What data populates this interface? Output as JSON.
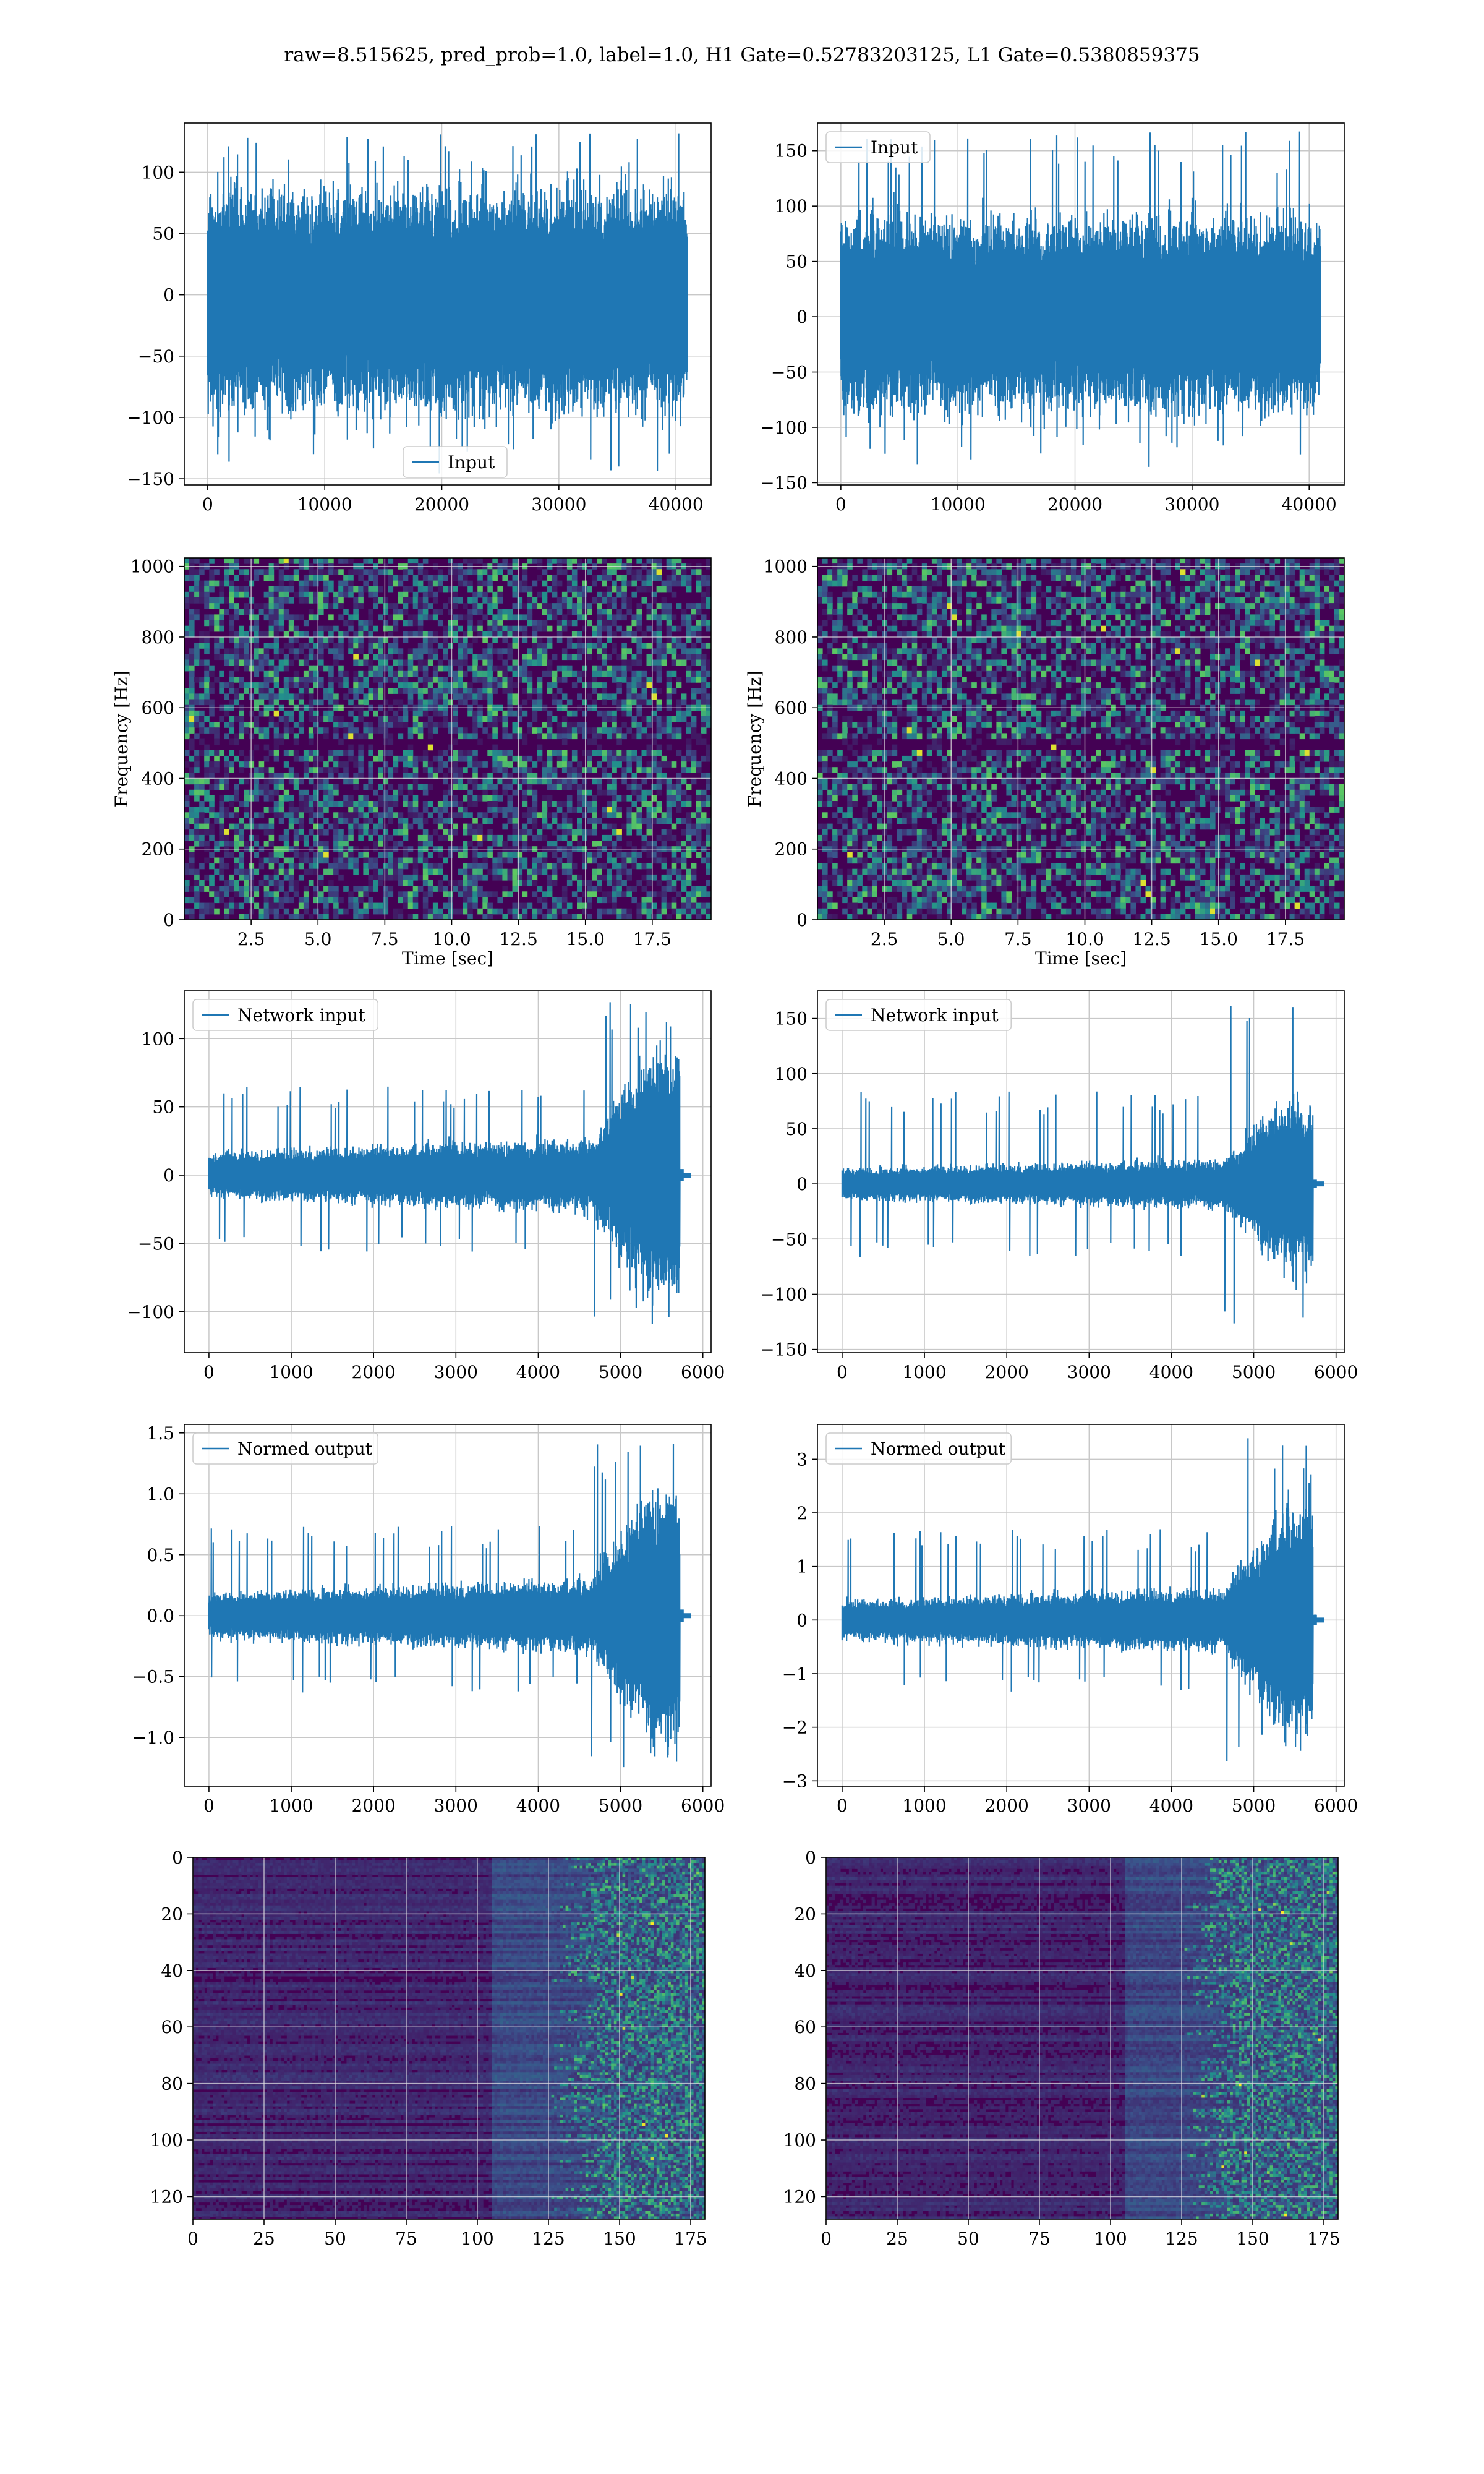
{
  "figure": {
    "title": "raw=8.515625, pred_prob=1.0, label=1.0, H1 Gate=0.52783203125, L1 Gate=0.5380859375"
  },
  "colors": {
    "line": "#1f77b4",
    "grid": "#c8c8c8",
    "viridis_low": "#440154",
    "viridis_mid": "#21918c",
    "viridis_high": "#fde725"
  },
  "chart_data": [
    {
      "id": "h1-input",
      "type": "line",
      "legend": [
        "Input"
      ],
      "legend_loc": "lower center",
      "grid": true,
      "xlim": [
        -2000,
        43000
      ],
      "ylim": [
        -155,
        140
      ],
      "xticks": [
        0,
        10000,
        20000,
        30000,
        40000
      ],
      "yticks": [
        -150,
        -100,
        -50,
        0,
        50,
        100
      ],
      "signal": {
        "n": 40960,
        "band_low": -80,
        "band_high": 70,
        "spike_max": 132,
        "spike_min": -150,
        "burst_start": null
      }
    },
    {
      "id": "l1-input",
      "type": "line",
      "legend": [
        "Input"
      ],
      "legend_loc": "upper left",
      "grid": true,
      "xlim": [
        -2000,
        43000
      ],
      "ylim": [
        -152,
        175
      ],
      "xticks": [
        0,
        10000,
        20000,
        30000,
        40000
      ],
      "yticks": [
        -150,
        -100,
        -50,
        0,
        50,
        100,
        150
      ],
      "signal": {
        "n": 40960,
        "band_low": -70,
        "band_high": 75,
        "spike_max": 168,
        "spike_min": -140,
        "burst_start": null
      }
    },
    {
      "id": "h1-spectrogram",
      "type": "heatmap",
      "grid": true,
      "xlim": [
        0,
        19.7
      ],
      "ylim": [
        0,
        1024
      ],
      "xticks": [
        2.5,
        5.0,
        7.5,
        10.0,
        12.5,
        15.0,
        17.5
      ],
      "yticks": [
        0,
        200,
        400,
        600,
        800,
        1000
      ],
      "xlabel": "Time [sec]",
      "ylabel": "Frequency [Hz]",
      "dark_band_hz": 500
    },
    {
      "id": "l1-spectrogram",
      "type": "heatmap",
      "grid": true,
      "xlim": [
        0,
        19.7
      ],
      "ylim": [
        0,
        1024
      ],
      "xticks": [
        2.5,
        5.0,
        7.5,
        10.0,
        12.5,
        15.0,
        17.5
      ],
      "yticks": [
        0,
        200,
        400,
        600,
        800,
        1000
      ],
      "xlabel": "Time [sec]",
      "ylabel": "Frequency [Hz]",
      "dark_band_hz": 500
    },
    {
      "id": "h1-network-input",
      "type": "line",
      "legend": [
        "Network input"
      ],
      "legend_loc": "upper left",
      "grid": true,
      "xlim": [
        -300,
        6100
      ],
      "ylim": [
        -130,
        135
      ],
      "xticks": [
        0,
        1000,
        2000,
        3000,
        4000,
        5000,
        6000
      ],
      "yticks": [
        -100,
        -50,
        0,
        50,
        100
      ],
      "signal": {
        "n": 5760,
        "band_low": -18,
        "band_high": 18,
        "spike_max": 130,
        "spike_min": -117,
        "burst_start": 4600
      }
    },
    {
      "id": "l1-network-input",
      "type": "line",
      "legend": [
        "Network input"
      ],
      "legend_loc": "upper left",
      "grid": true,
      "xlim": [
        -300,
        6100
      ],
      "ylim": [
        -153,
        175
      ],
      "xticks": [
        0,
        1000,
        2000,
        3000,
        4000,
        5000,
        6000
      ],
      "yticks": [
        -150,
        -100,
        -50,
        0,
        50,
        100,
        150
      ],
      "signal": {
        "n": 5760,
        "band_low": -15,
        "band_high": 15,
        "spike_max": 168,
        "spike_min": -137,
        "burst_start": 4600
      }
    },
    {
      "id": "h1-normed-output",
      "type": "line",
      "legend": [
        "Normed output"
      ],
      "legend_loc": "upper left",
      "grid": true,
      "xlim": [
        -300,
        6100
      ],
      "ylim": [
        -1.4,
        1.57
      ],
      "xticks": [
        0,
        1000,
        2000,
        3000,
        4000,
        5000,
        6000
      ],
      "yticks": [
        -1.0,
        -0.5,
        0.0,
        0.5,
        1.0,
        1.5
      ],
      "signal": {
        "n": 5760,
        "band_low": -0.2,
        "band_high": 0.2,
        "spike_max": 1.47,
        "spike_min": -1.3,
        "burst_start": 4600
      }
    },
    {
      "id": "l1-normed-output",
      "type": "line",
      "legend": [
        "Normed output"
      ],
      "legend_loc": "upper left",
      "grid": true,
      "xlim": [
        -300,
        6100
      ],
      "ylim": [
        -3.1,
        3.65
      ],
      "xticks": [
        0,
        1000,
        2000,
        3000,
        4000,
        5000,
        6000
      ],
      "yticks": [
        -3,
        -2,
        -1,
        0,
        1,
        2,
        3
      ],
      "signal": {
        "n": 5760,
        "band_low": -0.4,
        "band_high": 0.4,
        "spike_max": 3.4,
        "spike_min": -2.75,
        "burst_start": 4600
      }
    },
    {
      "id": "h1-feature-map",
      "type": "heatmap",
      "grid": true,
      "xlim": [
        0,
        180
      ],
      "ylim": [
        128,
        0
      ],
      "xticks": [
        0,
        25,
        50,
        75,
        100,
        125,
        150,
        175
      ],
      "yticks": [
        0,
        20,
        40,
        60,
        80,
        100,
        120
      ],
      "activity_start": 125
    },
    {
      "id": "l1-feature-map",
      "type": "heatmap",
      "grid": true,
      "xlim": [
        0,
        180
      ],
      "ylim": [
        128,
        0
      ],
      "xticks": [
        0,
        25,
        50,
        75,
        100,
        125,
        150,
        175
      ],
      "yticks": [
        0,
        20,
        40,
        60,
        80,
        100,
        120
      ],
      "activity_start": 125
    }
  ]
}
